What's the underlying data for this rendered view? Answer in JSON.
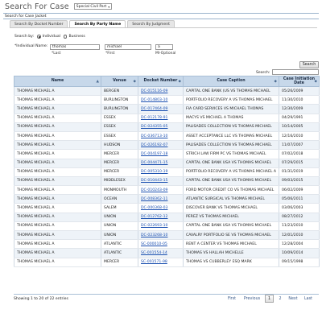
{
  "header": {
    "title": "Search For Case",
    "court_select": "Special Civil Part"
  },
  "section_label": "Search for Case Jacket",
  "tabs": [
    {
      "label": "Search By Docket Number",
      "active": false
    },
    {
      "label": "Search By Party Name",
      "active": true
    },
    {
      "label": "Search By Judgment",
      "active": false
    }
  ],
  "search_by": {
    "label": "Search by:",
    "options": [
      {
        "label": "Individual",
        "checked": true
      },
      {
        "label": "Business",
        "checked": false
      }
    ]
  },
  "individual_name": {
    "label": "*Individual Name:",
    "last_value": "thomas",
    "first_value": "michael",
    "mi_value": "a",
    "last_label": "*Last",
    "first_label": "*First",
    "mi_label": "MI-Optional"
  },
  "search_button": "Search",
  "filter": {
    "label": "Search:",
    "value": ""
  },
  "table": {
    "columns": [
      "Name",
      "Venue",
      "Docket Number",
      "Case Caption",
      "Case Initiation Date"
    ],
    "rows": [
      [
        "THOMAS MICHAEL A",
        "BERGEN",
        "DC-015116-09",
        "CAPITAL ONE BANK (US VS THOMAS MICHAEL",
        "05/26/2009"
      ],
      [
        "THOMAS MICHAEL A",
        "BURLINGTON",
        "DC-014803-10",
        "PORTFOLIO RECOVERY A VS THOMAS MICHAEL",
        "11/30/2010"
      ],
      [
        "THOMAS MICHAEL A",
        "BURLINGTON",
        "DC-017464-09",
        "FIA CARD SERVICES VS MICHAEL THOMAS",
        "12/30/2009"
      ],
      [
        "THOMAS MICHAEL A",
        "ESSEX",
        "DC-012178-91",
        "MACYS VS MICHAEL A THOMAS",
        "04/29/1991"
      ],
      [
        "THOMAS MICHAEL A",
        "ESSEX",
        "DC-024355-05",
        "PALISADES COLLECTION VS THOMAS MICHAEL",
        "10/14/2005"
      ],
      [
        "THOMAS MICHAEL A",
        "ESSEX",
        "DC-036713-10",
        "ASSET ACCEPTANCE LLC VS THOMAS MICHAEL",
        "12/16/2010"
      ],
      [
        "THOMAS MICHAEL A",
        "HUDSON",
        "DC-026192-07",
        "PALISADES COLLECTION VS THOMAS MICHAEL",
        "11/07/2007"
      ],
      [
        "THOMAS MICHAEL A",
        "MERCER",
        "DC-004197-18",
        "STRICH LAW FIRM PC VS THOMAS MICHAEL",
        "07/02/2018"
      ],
      [
        "THOMAS MICHAEL A",
        "MERCER",
        "DC-004471-15",
        "CAPITAL ONE BANK USA VS THOMAS MICHAEL",
        "07/29/2015"
      ],
      [
        "THOMAS MICHAEL A",
        "MERCER",
        "DC-005310-19",
        "PORTFOLIO RECOVERY A VS THOMAS MICHAEL A",
        "01/31/2019"
      ],
      [
        "THOMAS MICHAEL A",
        "MIDDLESEX",
        "DC-010443-15",
        "CAPITAL ONE BANK USA VS THOMAS MICHAEL",
        "09/03/2015"
      ],
      [
        "THOMAS MICHAEL A",
        "MONMOUTH",
        "DC-010243-09",
        "FORD MOTOR CREDIT CO VS THOMAS MICHAEL",
        "06/02/2009"
      ],
      [
        "THOMAS MICHAEL A",
        "OCEAN",
        "DC-008362-11",
        "ATLANTIC SURGICAL VS THOMAS MICHAEL",
        "05/06/2011"
      ],
      [
        "THOMAS MICHAEL A",
        "SALEM",
        "DC-000368-03",
        "DISCOVER BANK VS THOMAS MICHAEL",
        "03/06/2003"
      ],
      [
        "THOMAS MICHAEL A",
        "UNION",
        "DC-012762-12",
        "PEREZ VS THOMAS MICHAEL",
        "08/27/2012"
      ],
      [
        "THOMAS MICHAEL A",
        "UNION",
        "DC-022693-10",
        "CAPITAL ONE BANK USA VS THOMAS MICHAEL",
        "11/23/2010"
      ],
      [
        "THOMAS MICHAEL A",
        "UNION",
        "DC-023268-10",
        "CAVALRY PORTFOLIO SE VS THOMAS MICHAEL",
        "12/01/2010"
      ],
      [
        "THOMAS MICHAEL A",
        "ATLANTIC",
        "SC-000010-05",
        "RENT A CENTER VS THOMAS MICHAEL",
        "12/28/2004"
      ],
      [
        "THOMAS MICHAEL A",
        "ATLANTIC",
        "SC-001554-14",
        "THOMAS VS HALLAH MICHELLE",
        "10/09/2014"
      ],
      [
        "THOMAS MICHAEL A",
        "MERCER",
        "SC-001571-98",
        "THOMAS VS CUBBERLEY ESQ MARK",
        "09/15/1998"
      ]
    ]
  },
  "footer": {
    "info": "Showing 1 to 20 of 22 entries",
    "first": "First",
    "previous": "Previous",
    "page1": "1",
    "page2": "2",
    "next": "Next",
    "last": "Last"
  }
}
